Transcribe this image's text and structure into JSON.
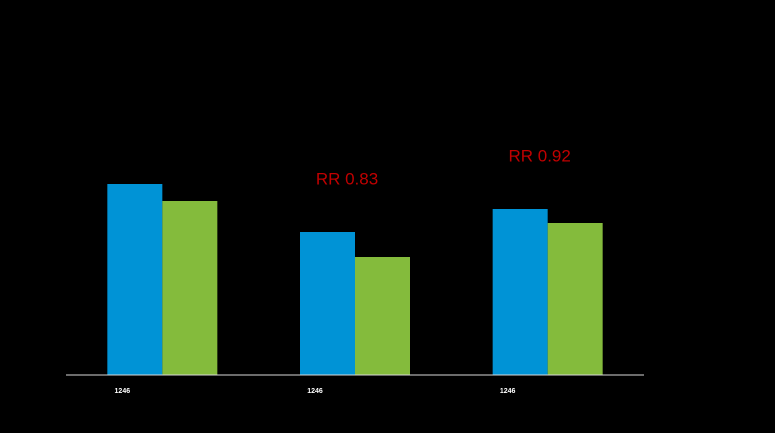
{
  "chart_data": {
    "type": "bar",
    "categories": [
      "1246",
      "1246",
      "1246"
    ],
    "series": [
      {
        "color": "#0093d6",
        "values": [
          191,
          143,
          166
        ]
      },
      {
        "color": "#84bb3c",
        "values": [
          174,
          118,
          152
        ]
      }
    ],
    "ylim": [
      0,
      200
    ],
    "annotations": [
      "RR 0.83",
      "RR 0.92"
    ],
    "annotation_color": "#c00000"
  }
}
